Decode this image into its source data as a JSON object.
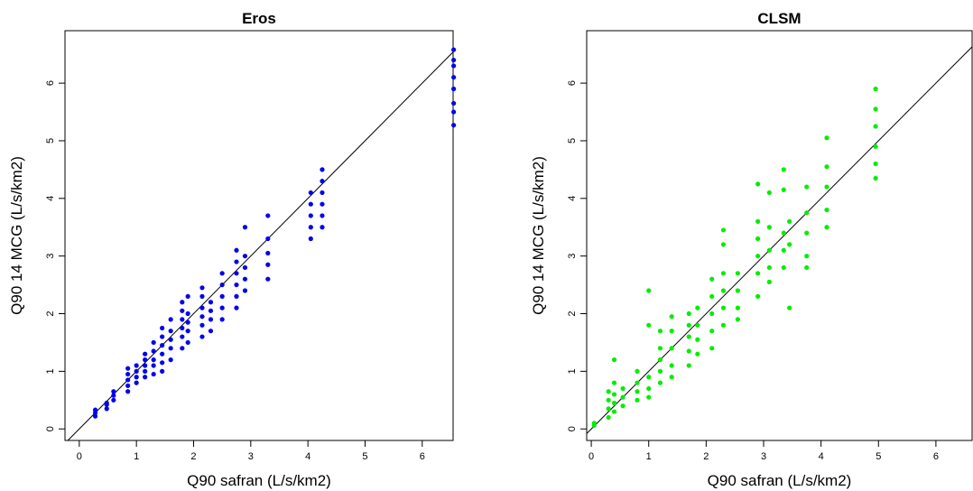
{
  "chart_data": [
    {
      "type": "scatter",
      "title": "Eros",
      "x_label": "Q90 safran (L/s/km2)",
      "y_label": "Q90 14 MCG (L/s/km2)",
      "xlim": [
        -0.25,
        6.54
      ],
      "ylim": [
        -0.2,
        6.91
      ],
      "xticks": [
        0,
        1,
        2,
        3,
        4,
        5,
        6
      ],
      "yticks": [
        0,
        1,
        2,
        3,
        4,
        5,
        6
      ],
      "diagonal": true,
      "series": [
        {
          "color": "#0000ee",
          "x": [
            0.28,
            0.28,
            0.28,
            0.48,
            0.48,
            0.48,
            0.6,
            0.6,
            0.6,
            0.85,
            0.85,
            0.85,
            0.85,
            0.85,
            1.0,
            1.0,
            1.0,
            1.0,
            1.15,
            1.15,
            1.15,
            1.15,
            1.15,
            1.3,
            1.3,
            1.3,
            1.3,
            1.3,
            1.45,
            1.45,
            1.45,
            1.45,
            1.45,
            1.45,
            1.6,
            1.6,
            1.6,
            1.6,
            1.6,
            1.8,
            1.8,
            1.8,
            1.8,
            1.8,
            1.8,
            1.9,
            1.9,
            1.9,
            1.9,
            1.9,
            2.15,
            2.15,
            2.15,
            2.15,
            2.15,
            2.15,
            2.3,
            2.3,
            2.3,
            2.3,
            2.5,
            2.5,
            2.5,
            2.5,
            2.5,
            2.75,
            2.75,
            2.75,
            2.75,
            2.75,
            2.75,
            2.9,
            2.9,
            2.9,
            2.9,
            2.9,
            3.3,
            3.3,
            3.3,
            3.3,
            3.3,
            4.05,
            4.05,
            4.05,
            4.05,
            4.05,
            4.25,
            4.25,
            4.25,
            4.25,
            4.25,
            4.25,
            6.55,
            6.55,
            6.55,
            6.55,
            6.55,
            6.55,
            6.55,
            6.55
          ],
          "y": [
            0.22,
            0.28,
            0.33,
            0.35,
            0.42,
            0.45,
            0.5,
            0.58,
            0.65,
            0.65,
            0.75,
            0.85,
            0.95,
            1.05,
            0.8,
            0.9,
            1.0,
            1.1,
            0.9,
            1.0,
            1.1,
            1.2,
            1.3,
            0.95,
            1.1,
            1.2,
            1.35,
            1.5,
            1.0,
            1.15,
            1.3,
            1.45,
            1.6,
            1.75,
            1.2,
            1.4,
            1.55,
            1.7,
            1.9,
            1.4,
            1.6,
            1.75,
            1.9,
            2.05,
            2.2,
            1.5,
            1.7,
            1.85,
            2.0,
            2.3,
            1.6,
            1.8,
            1.95,
            2.1,
            2.3,
            2.45,
            1.7,
            1.9,
            2.05,
            2.2,
            1.9,
            2.1,
            2.3,
            2.5,
            2.7,
            2.1,
            2.3,
            2.5,
            2.7,
            2.9,
            3.1,
            2.4,
            2.6,
            2.8,
            3.0,
            3.5,
            2.6,
            2.85,
            3.05,
            3.3,
            3.7,
            3.3,
            3.5,
            3.7,
            3.9,
            4.1,
            3.5,
            3.7,
            3.9,
            4.1,
            4.3,
            4.5,
            5.27,
            5.5,
            5.65,
            5.9,
            6.1,
            6.3,
            6.4,
            6.58
          ]
        }
      ]
    },
    {
      "type": "scatter",
      "title": "CLSM",
      "x_label": "Q90 safran (L/s/km2)",
      "y_label": "Q90 14 MCG (L/s/km2)",
      "xlim": [
        -0.08,
        6.63
      ],
      "ylim": [
        -0.2,
        6.91
      ],
      "xticks": [
        0,
        1,
        2,
        3,
        4,
        5,
        6
      ],
      "yticks": [
        0,
        1,
        2,
        3,
        4,
        5,
        6
      ],
      "diagonal": true,
      "series": [
        {
          "color": "#00ee00",
          "x": [
            0.05,
            0.05,
            0.3,
            0.3,
            0.3,
            0.3,
            0.4,
            0.4,
            0.4,
            0.4,
            0.4,
            0.55,
            0.55,
            0.55,
            0.8,
            0.8,
            0.8,
            0.8,
            1.0,
            1.0,
            1.0,
            1.0,
            1.0,
            1.2,
            1.2,
            1.2,
            1.2,
            1.2,
            1.4,
            1.4,
            1.4,
            1.4,
            1.4,
            1.7,
            1.7,
            1.7,
            1.7,
            1.7,
            1.85,
            1.85,
            1.85,
            1.85,
            2.1,
            2.1,
            2.1,
            2.1,
            2.1,
            2.3,
            2.3,
            2.3,
            2.3,
            2.3,
            2.3,
            2.55,
            2.55,
            2.55,
            2.55,
            2.9,
            2.9,
            2.9,
            2.9,
            2.9,
            2.9,
            3.1,
            3.1,
            3.1,
            3.1,
            3.1,
            3.35,
            3.35,
            3.35,
            3.35,
            3.35,
            3.45,
            3.45,
            3.45,
            3.75,
            3.75,
            3.75,
            3.75,
            3.75,
            4.1,
            4.1,
            4.1,
            4.1,
            4.1,
            4.95,
            4.95,
            4.95,
            4.95,
            4.95,
            4.95
          ],
          "y": [
            0.06,
            0.1,
            0.2,
            0.35,
            0.5,
            0.65,
            0.3,
            0.45,
            0.6,
            0.8,
            1.2,
            0.4,
            0.55,
            0.7,
            0.5,
            0.65,
            0.8,
            1.0,
            0.55,
            0.7,
            0.9,
            1.8,
            2.4,
            0.8,
            1.0,
            1.2,
            1.4,
            1.7,
            0.9,
            1.1,
            1.4,
            1.7,
            1.95,
            1.1,
            1.35,
            1.6,
            1.8,
            2.0,
            1.3,
            1.55,
            1.8,
            2.1,
            1.4,
            1.7,
            2.0,
            2.3,
            2.6,
            1.8,
            2.1,
            2.4,
            2.7,
            3.2,
            3.45,
            1.9,
            2.1,
            2.4,
            2.7,
            2.3,
            2.7,
            3.0,
            3.3,
            3.6,
            4.25,
            2.55,
            2.8,
            3.1,
            3.5,
            4.1,
            2.8,
            3.1,
            3.4,
            4.15,
            4.5,
            2.1,
            3.2,
            3.6,
            2.8,
            3.0,
            3.4,
            3.75,
            4.2,
            3.5,
            3.8,
            4.2,
            4.55,
            5.05,
            4.35,
            4.6,
            4.9,
            5.25,
            5.55,
            5.9
          ]
        }
      ]
    }
  ]
}
